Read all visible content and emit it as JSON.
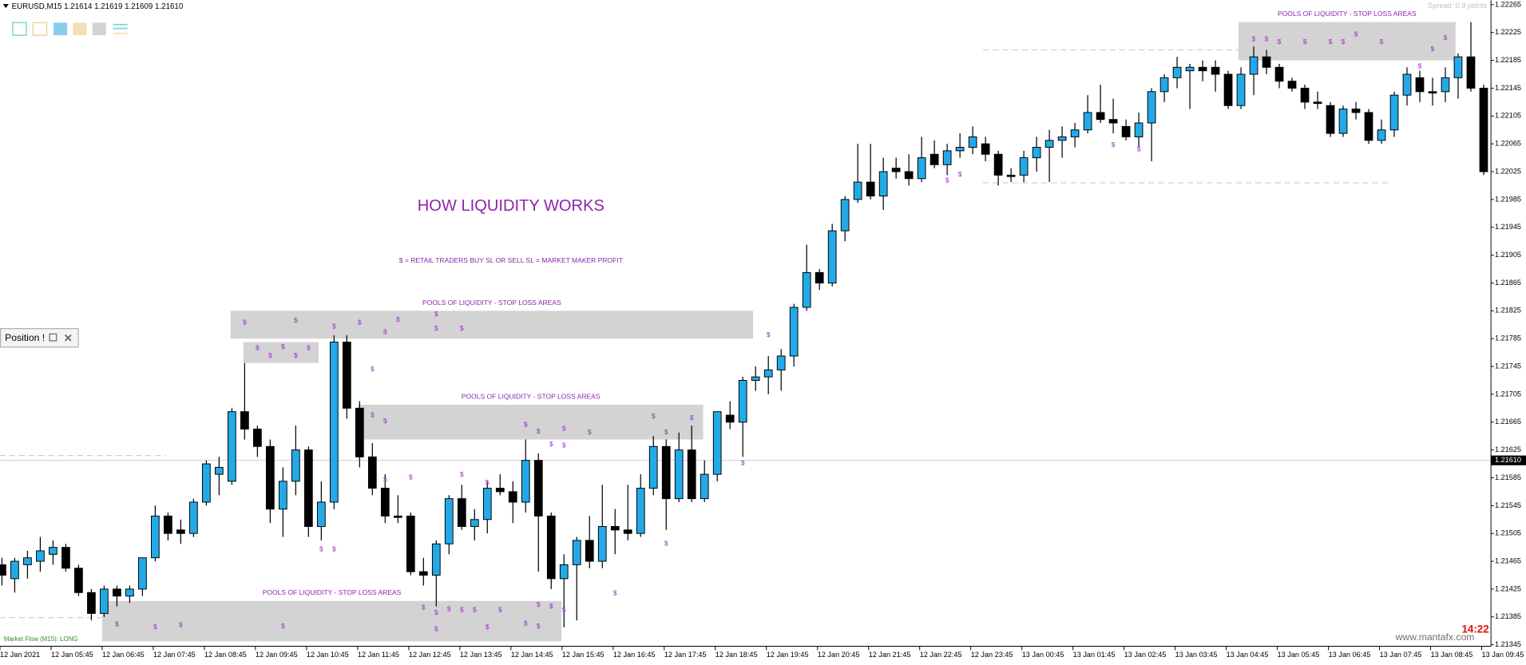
{
  "window": {
    "header": "EURUSD,M15  1.21614 1.21619 1.21609 1.21610",
    "spread": "Spread: 0.9 points",
    "position_panel": "Position !",
    "indicator": "Market Flow (M15): LONG",
    "clock": "14:22",
    "watermark": "www.mantafx.com"
  },
  "chart_data": {
    "type": "candlestick",
    "title": "HOW LIQUIDITY WORKS",
    "subtitle": "$ = RETAIL TRADERS BUY SL OR SELL SL = MARKET MAKER PROFIT",
    "up_color": "#22aae8",
    "down_color": "#000000",
    "categories": [
      "12 Jan 2021",
      null,
      null,
      null,
      "12 Jan 05:45",
      null,
      null,
      null,
      "12 Jan 06:45",
      null,
      null,
      null,
      "12 Jan 07:45",
      null,
      null,
      null,
      "12 Jan 08:45",
      null,
      null,
      null,
      "12 Jan 09:45",
      null,
      null,
      null,
      "12 Jan 10:45",
      null,
      null,
      null,
      "12 Jan 11:45",
      null,
      null,
      null,
      "12 Jan 12:45",
      null,
      null,
      null,
      "12 Jan 13:45",
      null,
      null,
      null,
      "12 Jan 14:45",
      null,
      null,
      null,
      "12 Jan 15:45",
      null,
      null,
      null,
      "12 Jan 16:45",
      null,
      null,
      null,
      "12 Jan 17:45",
      null,
      null,
      null,
      "12 Jan 18:45",
      null,
      null,
      null,
      "12 Jan 19:45",
      null,
      null,
      null,
      "12 Jan 20:45",
      null,
      null,
      null,
      "12 Jan 21:45",
      null,
      null,
      null,
      "12 Jan 22:45",
      null,
      null,
      null,
      "12 Jan 23:45",
      null,
      null,
      null,
      "13 Jan 00:45",
      null,
      null,
      null,
      "13 Jan 01:45",
      null,
      null,
      null,
      "13 Jan 02:45",
      null,
      null,
      null,
      "13 Jan 03:45",
      null,
      null,
      null,
      "13 Jan 04:45",
      null,
      null,
      null,
      "13 Jan 05:45",
      null,
      null,
      null,
      "13 Jan 06:45",
      null,
      null,
      null,
      "13 Jan 07:45",
      null,
      null,
      null,
      "13 Jan 08:45",
      null,
      null,
      null,
      "13 Jan 09:45"
    ],
    "open": [
      1.2146,
      1.2144,
      1.2146,
      1.21465,
      1.21475,
      1.21485,
      1.21455,
      1.2142,
      1.2139,
      1.21425,
      1.21415,
      1.21425,
      1.2147,
      1.2153,
      1.2151,
      1.21505,
      1.2155,
      1.2159,
      1.2158,
      1.2168,
      1.21655,
      1.2163,
      1.2154,
      1.2158,
      1.21625,
      1.21515,
      1.2155,
      1.2178,
      1.21685,
      1.21615,
      1.2157,
      1.2153,
      1.2153,
      1.2145,
      1.21445,
      1.2149,
      1.21555,
      1.21515,
      1.21525,
      1.2157,
      1.21565,
      1.2155,
      1.2161,
      1.2153,
      1.2144,
      1.2146,
      1.21495,
      1.21465,
      1.21515,
      1.2151,
      1.21505,
      1.2157,
      1.2163,
      1.21555,
      1.21625,
      1.21555,
      1.2159,
      1.21675,
      1.21665,
      1.21725,
      1.2173,
      1.2174,
      1.2176,
      1.2183,
      1.2188,
      1.21865,
      1.2194,
      1.21985,
      1.2201,
      1.2199,
      1.2203,
      1.22025,
      1.22015,
      1.2205,
      1.22035,
      1.22055,
      1.2206,
      1.22065,
      1.2205,
      1.2202,
      1.2202,
      1.22045,
      1.2206,
      1.2207,
      1.22075,
      1.22085,
      1.2211,
      1.221,
      1.2209,
      1.22075,
      1.22095,
      1.2214,
      1.2216,
      1.2217,
      1.22175,
      1.22175,
      1.22165,
      1.2212,
      1.22165,
      1.2219,
      1.22175,
      1.22155,
      1.22145,
      1.22125,
      1.2212,
      1.2208,
      1.22115,
      1.2211,
      1.2207,
      1.22085,
      1.22135,
      1.2216,
      1.2214,
      1.2214,
      1.2216,
      1.2219,
      1.22145
    ],
    "high": [
      1.2147,
      1.2147,
      1.2148,
      1.215,
      1.21495,
      1.2149,
      1.2146,
      1.21425,
      1.2143,
      1.2143,
      1.2143,
      1.2147,
      1.21545,
      1.21535,
      1.21525,
      1.21555,
      1.2161,
      1.21615,
      1.21685,
      1.2175,
      1.2166,
      1.2164,
      1.216,
      1.2166,
      1.2163,
      1.2158,
      1.2179,
      1.2179,
      1.21695,
      1.21635,
      1.2159,
      1.2156,
      1.21535,
      1.2147,
      1.21495,
      1.2156,
      1.21575,
      1.2154,
      1.2158,
      1.2159,
      1.2158,
      1.2164,
      1.2162,
      1.21535,
      1.21475,
      1.215,
      1.2153,
      1.21575,
      1.2154,
      1.21575,
      1.2159,
      1.21645,
      1.2164,
      1.2165,
      1.2166,
      1.2161,
      1.2168,
      1.21695,
      1.2173,
      1.21745,
      1.2176,
      1.2177,
      1.21835,
      1.2192,
      1.21885,
      1.2195,
      1.2199,
      1.22065,
      1.22065,
      1.22045,
      1.22045,
      1.2205,
      1.22075,
      1.2207,
      1.22065,
      1.2208,
      1.2209,
      1.22075,
      1.22055,
      1.2203,
      1.22055,
      1.22075,
      1.22085,
      1.2209,
      1.22095,
      1.22135,
      1.2215,
      1.2213,
      1.221,
      1.2211,
      1.22145,
      1.22165,
      1.2219,
      1.2218,
      1.22185,
      1.22185,
      1.2217,
      1.22175,
      1.22205,
      1.222,
      1.2218,
      1.2216,
      1.2215,
      1.2214,
      1.22125,
      1.2212,
      1.22125,
      1.22115,
      1.221,
      1.2214,
      1.22175,
      1.2217,
      1.2216,
      1.22175,
      1.22195,
      1.2224,
      1.2215
    ],
    "low": [
      1.2143,
      1.2142,
      1.2144,
      1.2145,
      1.2146,
      1.2145,
      1.21415,
      1.2138,
      1.21385,
      1.214,
      1.21405,
      1.21415,
      1.21465,
      1.21495,
      1.2149,
      1.215,
      1.21545,
      1.2156,
      1.21575,
      1.2164,
      1.21615,
      1.2152,
      1.215,
      1.2156,
      1.215,
      1.21495,
      1.2154,
      1.2167,
      1.216,
      1.2156,
      1.2152,
      1.2152,
      1.21445,
      1.2143,
      1.214,
      1.21475,
      1.2151,
      1.21495,
      1.21505,
      1.2156,
      1.2152,
      1.21535,
      1.2145,
      1.21425,
      1.2137,
      1.2138,
      1.21455,
      1.21455,
      1.21475,
      1.21495,
      1.215,
      1.2156,
      1.2151,
      1.2155,
      1.2155,
      1.2155,
      1.2158,
      1.21655,
      1.21615,
      1.2171,
      1.21705,
      1.2171,
      1.21745,
      1.21825,
      1.21855,
      1.2186,
      1.21925,
      1.2198,
      1.21985,
      1.2197,
      1.22015,
      1.22005,
      1.2201,
      1.2203,
      1.2202,
      1.22045,
      1.2205,
      1.2204,
      1.22005,
      1.2201,
      1.2201,
      1.22025,
      1.2201,
      1.22045,
      1.2206,
      1.2208,
      1.22095,
      1.2208,
      1.2207,
      1.2206,
      1.2204,
      1.22125,
      1.22145,
      1.22115,
      1.22155,
      1.2214,
      1.22115,
      1.22115,
      1.22135,
      1.22165,
      1.22145,
      1.2214,
      1.22115,
      1.22115,
      1.22075,
      1.22075,
      1.221,
      1.22065,
      1.22065,
      1.22075,
      1.2212,
      1.22125,
      1.2212,
      1.22125,
      1.2213,
      1.2214,
      1.2202
    ],
    "close": [
      1.21445,
      1.21465,
      1.2147,
      1.2148,
      1.21485,
      1.21455,
      1.2142,
      1.2139,
      1.21425,
      1.21415,
      1.21425,
      1.2147,
      1.2153,
      1.21505,
      1.21505,
      1.2155,
      1.21605,
      1.216,
      1.2168,
      1.21655,
      1.2163,
      1.2154,
      1.2158,
      1.21625,
      1.21515,
      1.2155,
      1.2178,
      1.21685,
      1.21615,
      1.2157,
      1.2153,
      1.21528,
      1.2145,
      1.21445,
      1.2149,
      1.21555,
      1.21515,
      1.21525,
      1.2157,
      1.21565,
      1.2155,
      1.2161,
      1.2153,
      1.2144,
      1.2146,
      1.21495,
      1.21465,
      1.21515,
      1.2151,
      1.21505,
      1.2157,
      1.2163,
      1.21555,
      1.21625,
      1.21555,
      1.2159,
      1.2168,
      1.21665,
      1.21725,
      1.2173,
      1.2174,
      1.2176,
      1.2183,
      1.2188,
      1.21865,
      1.2194,
      1.21985,
      1.2201,
      1.2199,
      1.22025,
      1.22025,
      1.22015,
      1.22045,
      1.22035,
      1.22055,
      1.2206,
      1.22075,
      1.2205,
      1.2202,
      1.22018,
      1.22045,
      1.2206,
      1.2207,
      1.22075,
      1.22085,
      1.2211,
      1.221,
      1.22095,
      1.22075,
      1.22095,
      1.2214,
      1.2216,
      1.22175,
      1.22175,
      1.2217,
      1.22165,
      1.2212,
      1.22165,
      1.2219,
      1.22175,
      1.22155,
      1.22145,
      1.22125,
      1.22123,
      1.2208,
      1.22115,
      1.2211,
      1.2207,
      1.22085,
      1.22135,
      1.22165,
      1.2214,
      1.22138,
      1.2216,
      1.2219,
      1.22145,
      1.22025
    ],
    "ylim": [
      1.2134,
      1.2227
    ],
    "yticks": [
      1.22265,
      1.22225,
      1.22185,
      1.22145,
      1.22105,
      1.22065,
      1.22025,
      1.21985,
      1.21945,
      1.21905,
      1.21865,
      1.21825,
      1.21785,
      1.21745,
      1.21705,
      1.21665,
      1.21625,
      1.21585,
      1.21545,
      1.21505,
      1.21465,
      1.21425,
      1.21385,
      1.21345
    ],
    "current_price": {
      "value": 1.2161,
      "label": "1.21610"
    },
    "grid": false,
    "zones": [
      {
        "label": "POOLS OF LIQUIDITY - STOP LOSS AREAS",
        "x_range": [
          17.9,
          58.8
        ],
        "price_range": [
          1.21825,
          1.21785
        ]
      },
      {
        "x_range": [
          18.9,
          24.8
        ],
        "price_range": [
          1.2178,
          1.2175
        ]
      },
      {
        "label": "POOLS OF LIQUIDITY - STOP LOSS AREAS",
        "x_range": [
          27.9,
          54.9
        ],
        "price_range": [
          1.2169,
          1.2164
        ]
      },
      {
        "label": "POOLS OF LIQUIDITY - STOP LOSS AREAS",
        "x_range": [
          7.85,
          43.8
        ],
        "price_range": [
          1.21408,
          1.2135
        ]
      },
      {
        "label": "POOLS OF LIQUIDITY - STOP LOSS AREAS",
        "x_range": [
          96.8,
          113.8
        ],
        "price_range": [
          1.2224,
          1.22185
        ]
      }
    ],
    "levels": [
      {
        "price": 1.222,
        "x_range": [
          76.8,
          108.8
        ]
      },
      {
        "price": 1.22009,
        "x_range": [
          76.8,
          108.8
        ]
      },
      {
        "price": 1.21617,
        "x_range": [
          -0.2,
          12.8
        ]
      },
      {
        "price": 1.21384,
        "x_range": [
          -0.2,
          7.85
        ]
      }
    ],
    "markers": {
      "text": "$",
      "color": "#9a2bc4",
      "points": [
        [
          19,
          1.21808
        ],
        [
          23,
          1.21811
        ],
        [
          26,
          1.21802
        ],
        [
          28,
          1.21808
        ],
        [
          30,
          1.21794
        ],
        [
          31,
          1.21812
        ],
        [
          34,
          1.2182
        ],
        [
          34,
          1.21799
        ],
        [
          36,
          1.21799
        ],
        [
          20,
          1.21771
        ],
        [
          21,
          1.2176
        ],
        [
          22,
          1.21773
        ],
        [
          23,
          1.2176
        ],
        [
          24,
          1.21771
        ],
        [
          29,
          1.21741
        ],
        [
          29,
          1.21675
        ],
        [
          30,
          1.21666
        ],
        [
          41,
          1.21661
        ],
        [
          42,
          1.21651
        ],
        [
          43,
          1.21633
        ],
        [
          44,
          1.21655
        ],
        [
          44,
          1.21631
        ],
        [
          46,
          1.2165
        ],
        [
          51,
          1.21673
        ],
        [
          52,
          1.2165
        ],
        [
          54,
          1.21671
        ],
        [
          32,
          1.21585
        ],
        [
          30,
          1.21582
        ],
        [
          36,
          1.21589
        ],
        [
          38,
          1.21578
        ],
        [
          25,
          1.21482
        ],
        [
          26,
          1.21482
        ],
        [
          52,
          1.2149
        ],
        [
          58,
          1.21606
        ],
        [
          60,
          1.2179
        ],
        [
          48,
          1.21419
        ],
        [
          9,
          1.21374
        ],
        [
          12,
          1.2137
        ],
        [
          14,
          1.21373
        ],
        [
          22,
          1.21371
        ],
        [
          33,
          1.21398
        ],
        [
          34,
          1.21391
        ],
        [
          34,
          1.21367
        ],
        [
          35,
          1.21396
        ],
        [
          36,
          1.21395
        ],
        [
          37,
          1.21395
        ],
        [
          38,
          1.2137
        ],
        [
          39,
          1.21395
        ],
        [
          41,
          1.21375
        ],
        [
          42,
          1.21402
        ],
        [
          42,
          1.21371
        ],
        [
          43,
          1.214
        ],
        [
          44,
          1.21395
        ],
        [
          74,
          1.22012
        ],
        [
          75,
          1.22021
        ],
        [
          87,
          1.22063
        ],
        [
          89,
          1.22057
        ],
        [
          98,
          1.22215
        ],
        [
          99,
          1.22215
        ],
        [
          100,
          1.22211
        ],
        [
          102,
          1.22211
        ],
        [
          104,
          1.22211
        ],
        [
          105,
          1.22211
        ],
        [
          106,
          1.22222
        ],
        [
          108,
          1.22211
        ],
        [
          111,
          1.22176
        ],
        [
          112,
          1.22201
        ],
        [
          113,
          1.22217
        ]
      ]
    }
  }
}
